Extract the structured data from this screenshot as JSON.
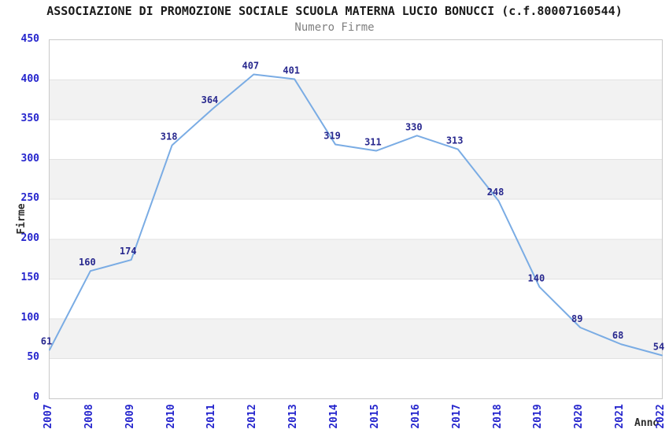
{
  "page": {
    "background": "#ffffff"
  },
  "chart_data": {
    "type": "line",
    "title": "ASSOCIAZIONE DI PROMOZIONE SOCIALE SCUOLA MATERNA LUCIO BONUCCI (c.f.80007160544)",
    "subtitle": "Numero Firme",
    "xlabel": "Anno",
    "ylabel": "Firme",
    "categories": [
      "2007",
      "2008",
      "2009",
      "2010",
      "2011",
      "2012",
      "2013",
      "2014",
      "2015",
      "2016",
      "2017",
      "2018",
      "2019",
      "2020",
      "2021",
      "2022"
    ],
    "series": [
      {
        "name": "Numero Firme",
        "values": [
          61,
          160,
          174,
          318,
          364,
          407,
          401,
          319,
          311,
          330,
          313,
          248,
          140,
          89,
          68,
          54
        ]
      }
    ],
    "ylim": [
      0,
      450
    ],
    "ytick_step": 50,
    "yticks": [
      0,
      50,
      100,
      150,
      200,
      250,
      300,
      350,
      400,
      450
    ],
    "grid": true,
    "bands": "alternating-horizontal",
    "legend": "none",
    "point_labels": true,
    "colors": {
      "line": "#7aace4",
      "point_label": "#28288e",
      "tick_label": "#2525cd",
      "band": "#f2f2f2",
      "gridline": "#e2e2e2",
      "plot_border": "#c9c9c9",
      "title": "#1a1a1a",
      "subtitle": "#808080",
      "axis_title": "#2b2b2b"
    }
  }
}
